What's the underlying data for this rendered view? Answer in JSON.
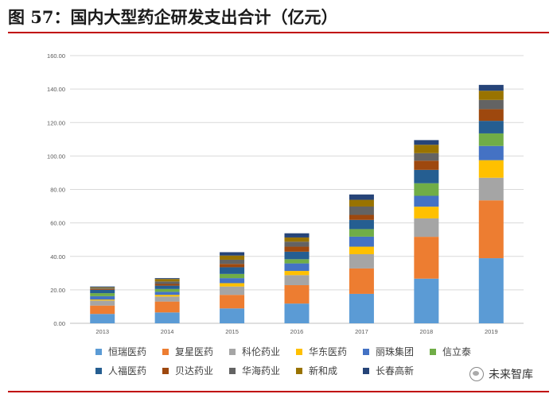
{
  "title": "图 57：国内大型药企研发支出合计（亿元）",
  "watermark": "未来智库",
  "chart_data": {
    "type": "bar",
    "stacked": true,
    "categories": [
      "2013",
      "2014",
      "2015",
      "2016",
      "2017",
      "2018",
      "2019"
    ],
    "ylim": [
      0,
      160
    ],
    "yticks": [
      "0.00",
      "20.00",
      "40.00",
      "60.00",
      "80.00",
      "100.00",
      "120.00",
      "140.00",
      "160.00"
    ],
    "legend_position": "bottom",
    "series": [
      {
        "name": "恒瑞医药",
        "color": "#5b9bd5",
        "values": [
          5.6,
          6.5,
          8.9,
          11.8,
          17.6,
          26.7,
          38.9
        ]
      },
      {
        "name": "复星医药",
        "color": "#ed7d31",
        "values": [
          5.0,
          6.5,
          8.1,
          11.0,
          15.2,
          25.0,
          34.6
        ]
      },
      {
        "name": "科伦药业",
        "color": "#a5a5a5",
        "values": [
          3.0,
          3.0,
          5.0,
          6.0,
          8.5,
          11.0,
          13.5
        ]
      },
      {
        "name": "华东医药",
        "color": "#ffc000",
        "values": [
          0.6,
          1.0,
          2.0,
          2.5,
          4.5,
          7.0,
          10.5
        ]
      },
      {
        "name": "丽珠集团",
        "color": "#4472c4",
        "values": [
          2.0,
          1.8,
          3.0,
          4.5,
          6.0,
          6.5,
          8.5
        ]
      },
      {
        "name": "信立泰",
        "color": "#70ad47",
        "values": [
          1.8,
          1.7,
          2.5,
          2.5,
          4.5,
          7.5,
          7.5
        ]
      },
      {
        "name": "人福医药",
        "color": "#255e91",
        "values": [
          2.0,
          2.0,
          4.0,
          4.5,
          5.5,
          8.0,
          7.5
        ]
      },
      {
        "name": "贝达药业",
        "color": "#9e480e",
        "values": [
          0.5,
          1.0,
          2.0,
          3.0,
          3.0,
          5.5,
          7.0
        ]
      },
      {
        "name": "华海药业",
        "color": "#636363",
        "values": [
          0.5,
          1.5,
          2.5,
          3.0,
          5.0,
          4.5,
          5.5
        ]
      },
      {
        "name": "新和成",
        "color": "#997300",
        "values": [
          0.5,
          1.5,
          2.5,
          2.5,
          4.0,
          5.0,
          5.5
        ]
      },
      {
        "name": "长春高新",
        "color": "#264478",
        "values": [
          0.5,
          0.5,
          2.0,
          2.5,
          3.2,
          2.8,
          3.5
        ]
      }
    ]
  }
}
